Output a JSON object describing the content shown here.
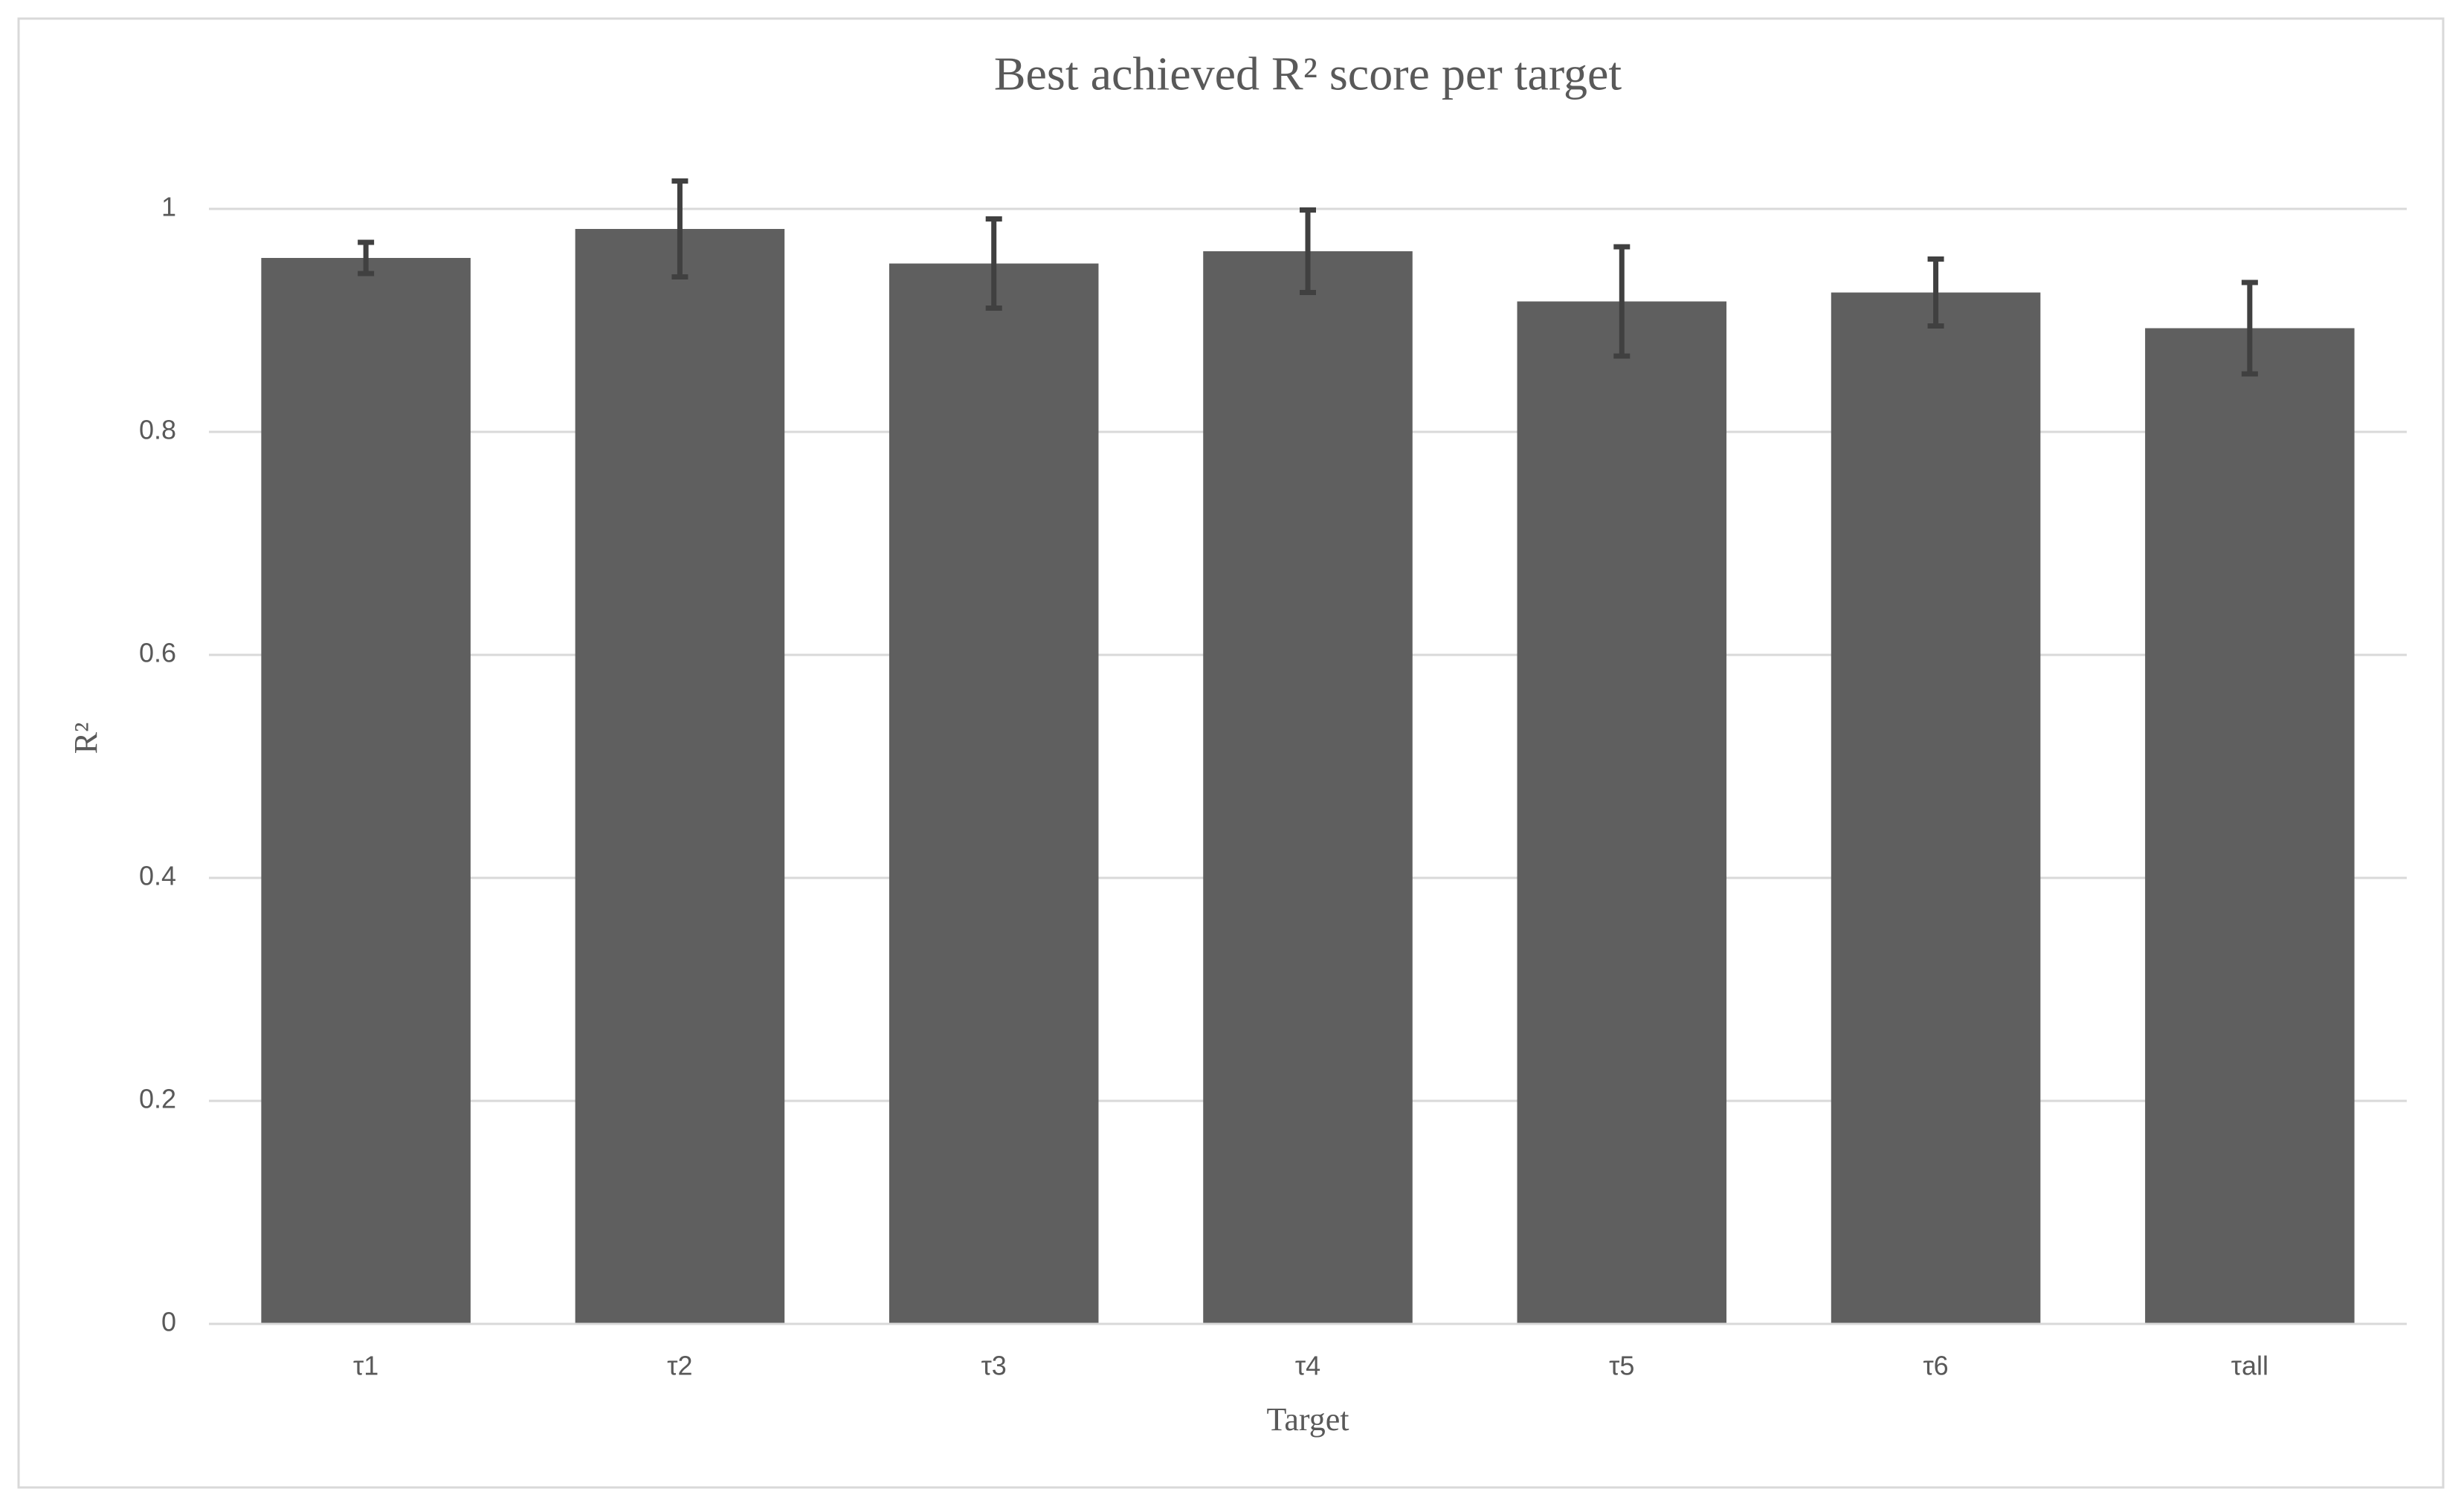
{
  "chart_data": {
    "type": "bar",
    "title": "Best achieved R² score per target",
    "x_label": "Target",
    "y_label": "R²",
    "categories": [
      "τ1",
      "τ2",
      "τ3",
      "τ4",
      "τ5",
      "τ6",
      "τall"
    ],
    "values": [
      0.956,
      0.982,
      0.951,
      0.962,
      0.917,
      0.925,
      0.893
    ],
    "errors": [
      0.014,
      0.043,
      0.04,
      0.037,
      0.049,
      0.03,
      0.041
    ],
    "color": "#5f5f5f",
    "error_color": "#404040",
    "ylim": [
      0,
      1
    ],
    "yticks": [
      0,
      0.2,
      0.4,
      0.6,
      0.8,
      1
    ],
    "grid": true
  }
}
